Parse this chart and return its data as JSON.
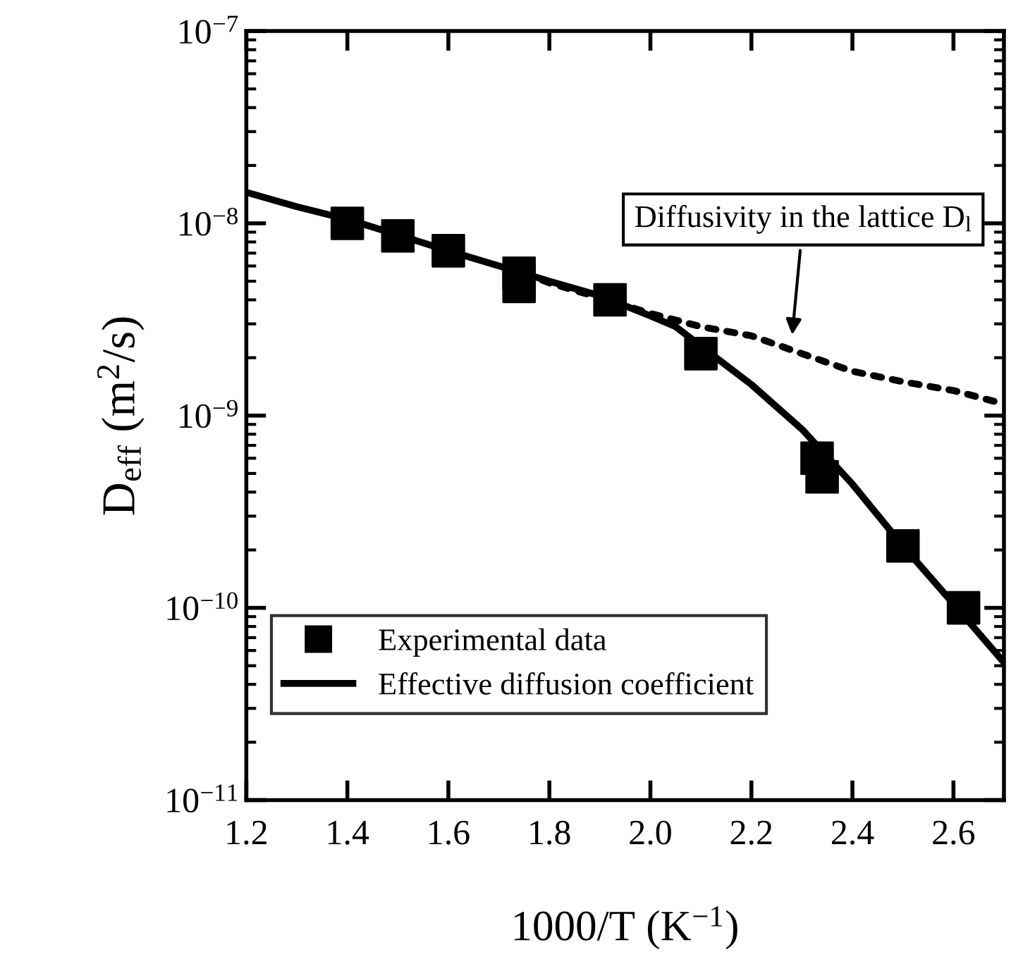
{
  "chart_data": {
    "type": "line",
    "xlabel": "1000/T (K$^{−1}$)",
    "ylabel": "D$_{eff}$ (m$^{2}$/s)",
    "log": "y",
    "xlim": [
      1.2,
      2.7
    ],
    "xticks": [
      {
        "value": 1.2,
        "label": "1.2"
      },
      {
        "value": 1.4,
        "label": "1.4"
      },
      {
        "value": 1.6,
        "label": "1.6"
      },
      {
        "value": 1.8,
        "label": "1.8"
      },
      {
        "value": 2.0,
        "label": "2.0"
      },
      {
        "value": 2.2,
        "label": "2.2"
      },
      {
        "value": 2.4,
        "label": "2.4"
      },
      {
        "value": 2.6,
        "label": "2.6"
      }
    ],
    "ylim": [
      1e-11,
      1e-07
    ],
    "yticks": [
      {
        "value": 1e-11,
        "label": "10$^{−11}$"
      },
      {
        "value": 1e-10,
        "label": "10$^{−10}$"
      },
      {
        "value": 1e-09,
        "label": "10$^{−9}$"
      },
      {
        "value": 1e-08,
        "label": "10$^{−8}$"
      },
      {
        "value": 1e-07,
        "label": "10$^{−7}$"
      }
    ],
    "grid": false,
    "legend": "bottom left",
    "series": [
      {
        "name": "Experimental data",
        "type": "scatter",
        "marker": "square",
        "color": "#000000",
        "x": [
          1.4,
          1.5,
          1.6,
          1.74,
          1.74,
          1.92,
          2.1,
          2.33,
          2.34,
          2.5,
          2.62
        ],
        "values": [
          1e-08,
          8.6e-09,
          7.2e-09,
          5.5e-09,
          4.7e-09,
          4e-09,
          2.1e-09,
          6e-10,
          4.8e-10,
          2.1e-10,
          1e-10
        ]
      },
      {
        "name": "Effective diffusion coefficient",
        "line_style": "solid",
        "color": "#000000",
        "x": [
          1.2,
          1.3,
          1.4,
          1.5,
          1.6,
          1.7,
          1.8,
          1.9,
          2.0,
          2.05,
          2.1,
          2.2,
          2.3,
          2.4,
          2.5,
          2.6,
          2.7
        ],
        "values": [
          1.45e-08,
          1.22e-08,
          1.05e-08,
          8.7e-09,
          7.2e-09,
          6e-09,
          5e-09,
          4.2e-09,
          3.3e-09,
          2.9e-09,
          2.3e-09,
          1.45e-09,
          8.5e-10,
          4.4e-10,
          2.1e-10,
          1.05e-10,
          5.2e-11
        ]
      },
      {
        "line_style": "dotted",
        "color": "#000000",
        "x": [
          1.75,
          1.8,
          1.9,
          2.0,
          2.1,
          2.2,
          2.3,
          2.4,
          2.5,
          2.6,
          2.7
        ],
        "values": [
          5.5e-09,
          4.9e-09,
          4.1e-09,
          3.4e-09,
          2.9e-09,
          2.6e-09,
          2.1e-09,
          1.7e-09,
          1.5e-09,
          1.35e-09,
          1.15e-09
        ]
      }
    ],
    "annotations": [
      "Diffusivity in the lattice D$_{l}$"
    ]
  }
}
